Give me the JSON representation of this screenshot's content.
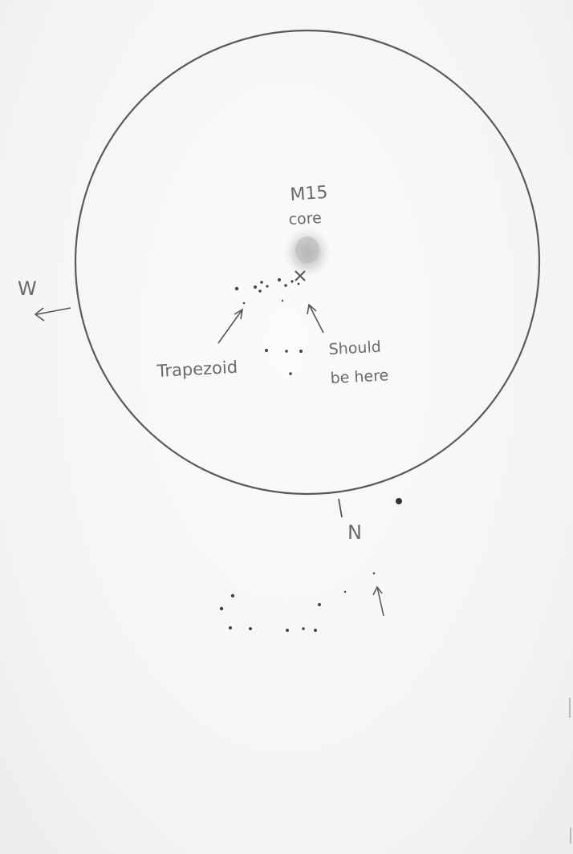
{
  "sketch": {
    "object_label": "M15",
    "core_label": "core",
    "west_label": "W",
    "north_label": "N",
    "trapezoid_label": "Trapezoid",
    "should_be_here_line1": "Should",
    "should_be_here_line2": "be here"
  },
  "colors": {
    "paper": "#f7f7f5",
    "pencil": "#6a6a6a",
    "core_glow": "#b8b8b8"
  }
}
